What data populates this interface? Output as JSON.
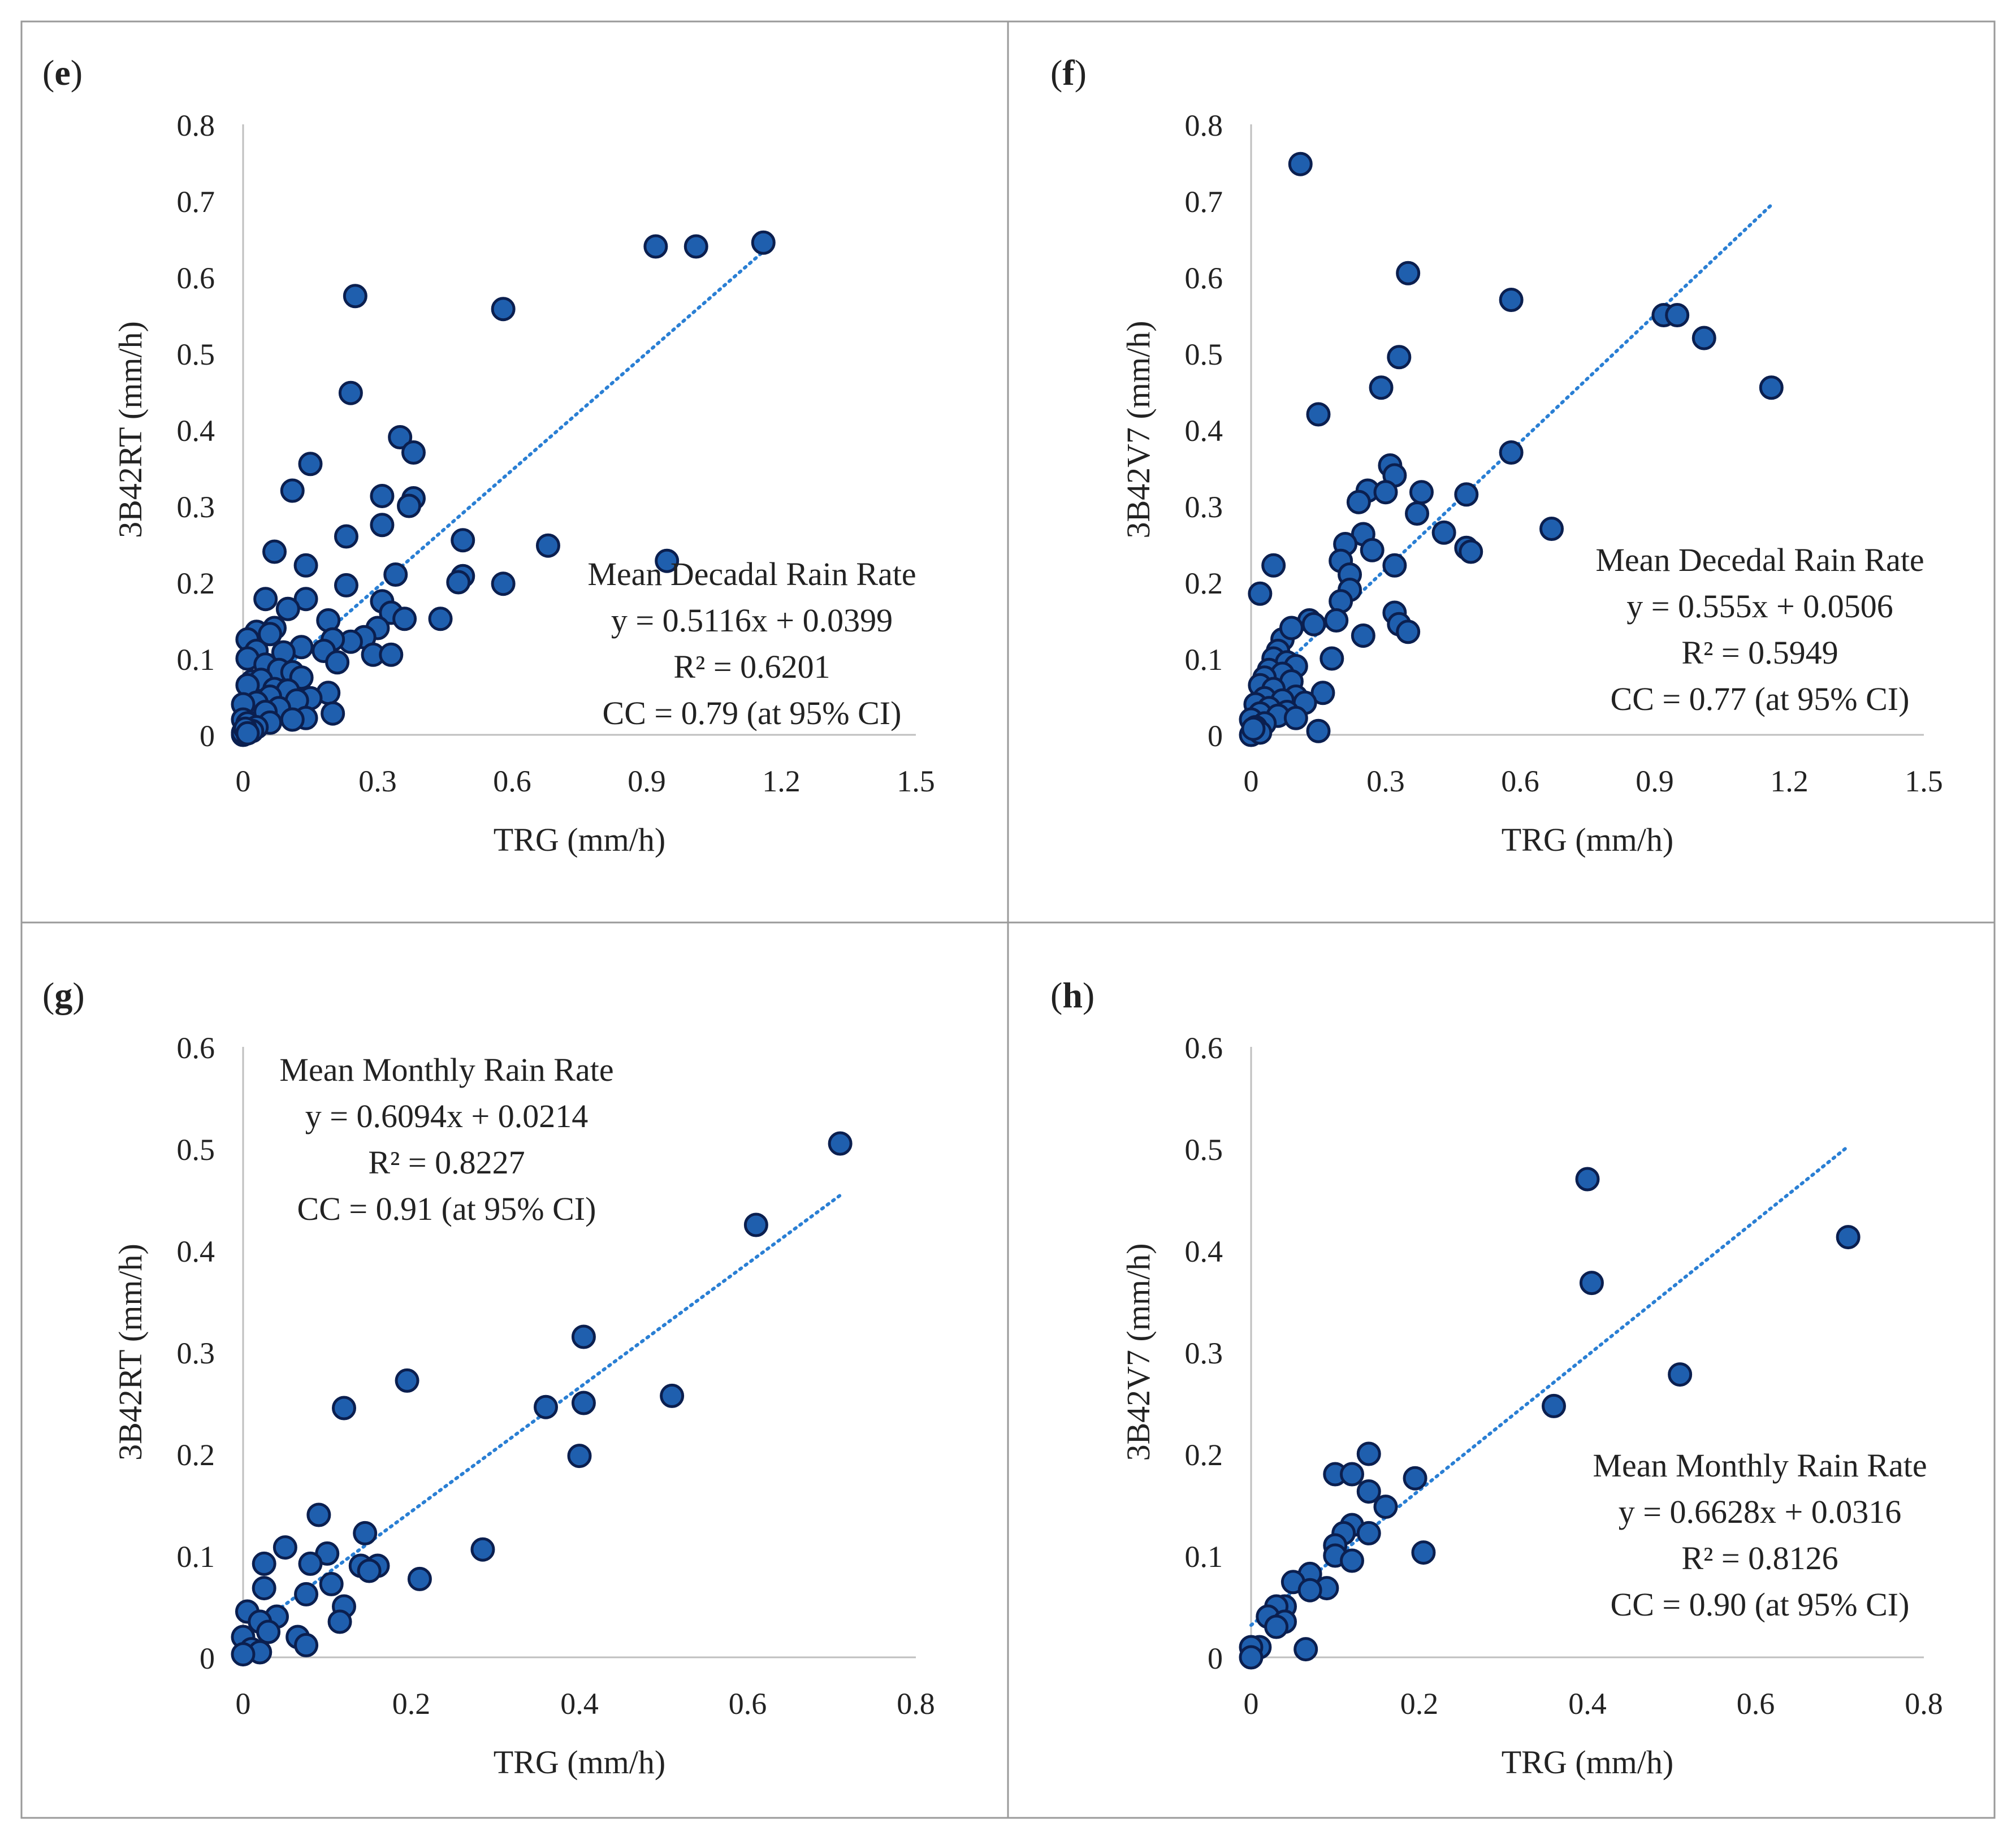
{
  "colors": {
    "marker_fill": "#1f5fae",
    "marker_stroke": "#0b1f4f",
    "trend": "#2a7fd4",
    "axis": "#bfbfbf",
    "border": "#9a9a9a",
    "text": "#222222"
  },
  "chart_data": [
    {
      "type": "scatter",
      "panel_label": "(e)",
      "label_letter": "e",
      "xlabel": "TRG (mm/h)",
      "ylabel": "3B42RT (mm/h)",
      "xlim": [
        0,
        1.5
      ],
      "ylim": [
        0,
        0.8
      ],
      "xticks": [
        "0",
        "0.3",
        "0.6",
        "0.9",
        "1.2",
        "1.5"
      ],
      "yticks": [
        "0",
        "0.1",
        "0.2",
        "0.3",
        "0.4",
        "0.5",
        "0.6",
        "0.7",
        "0.8"
      ],
      "trendline": {
        "slope": 0.5116,
        "intercept": 0.0399,
        "x_range": [
          0,
          1.16
        ]
      },
      "annotation": [
        "Mean Decadal Rain Rate",
        "y = 0.5116x + 0.0399",
        "R² = 0.6201",
        "CC = 0.79 (at 95% CI)"
      ],
      "annotation_anchor": "lower-right",
      "points": [
        [
          1.16,
          0.645
        ],
        [
          1.01,
          0.64
        ],
        [
          0.92,
          0.64
        ],
        [
          0.945,
          0.228
        ],
        [
          0.25,
          0.575
        ],
        [
          0.58,
          0.558
        ],
        [
          0.24,
          0.448
        ],
        [
          0.35,
          0.39
        ],
        [
          0.38,
          0.37
        ],
        [
          0.15,
          0.355
        ],
        [
          0.11,
          0.32
        ],
        [
          0.31,
          0.313
        ],
        [
          0.38,
          0.31
        ],
        [
          0.37,
          0.3
        ],
        [
          0.31,
          0.275
        ],
        [
          0.23,
          0.26
        ],
        [
          0.49,
          0.255
        ],
        [
          0.68,
          0.248
        ],
        [
          0.07,
          0.24
        ],
        [
          0.14,
          0.222
        ],
        [
          0.34,
          0.21
        ],
        [
          0.49,
          0.208
        ],
        [
          0.48,
          0.2
        ],
        [
          0.58,
          0.198
        ],
        [
          0.23,
          0.196
        ],
        [
          0.05,
          0.178
        ],
        [
          0.14,
          0.178
        ],
        [
          0.31,
          0.175
        ],
        [
          0.33,
          0.16
        ],
        [
          0.1,
          0.165
        ],
        [
          0.44,
          0.152
        ],
        [
          0.36,
          0.152
        ],
        [
          0.19,
          0.15
        ],
        [
          0.3,
          0.14
        ],
        [
          0.07,
          0.14
        ],
        [
          0.03,
          0.135
        ],
        [
          0.06,
          0.132
        ],
        [
          0.27,
          0.128
        ],
        [
          0.24,
          0.122
        ],
        [
          0.2,
          0.125
        ],
        [
          0.01,
          0.125
        ],
        [
          0.03,
          0.11
        ],
        [
          0.13,
          0.115
        ],
        [
          0.09,
          0.108
        ],
        [
          0.18,
          0.11
        ],
        [
          0.29,
          0.105
        ],
        [
          0.33,
          0.105
        ],
        [
          0.01,
          0.1
        ],
        [
          0.21,
          0.095
        ],
        [
          0.05,
          0.092
        ],
        [
          0.08,
          0.085
        ],
        [
          0.11,
          0.082
        ],
        [
          0.13,
          0.075
        ],
        [
          0.02,
          0.07
        ],
        [
          0.04,
          0.072
        ],
        [
          0.01,
          0.065
        ],
        [
          0.07,
          0.06
        ],
        [
          0.1,
          0.058
        ],
        [
          0.19,
          0.055
        ],
        [
          0.15,
          0.048
        ],
        [
          0.06,
          0.05
        ],
        [
          0.12,
          0.045
        ],
        [
          0.03,
          0.042
        ],
        [
          0.0,
          0.04
        ],
        [
          0.08,
          0.035
        ],
        [
          0.05,
          0.03
        ],
        [
          0.2,
          0.028
        ],
        [
          0.14,
          0.022
        ],
        [
          0.11,
          0.02
        ],
        [
          0.0,
          0.02
        ],
        [
          0.06,
          0.016
        ],
        [
          0.01,
          0.015
        ],
        [
          0.03,
          0.01
        ],
        [
          0.02,
          0.005
        ],
        [
          0.0,
          0.0
        ],
        [
          0.0,
          0.003
        ],
        [
          0.005,
          0.008
        ],
        [
          0.01,
          0.002
        ]
      ]
    },
    {
      "type": "scatter",
      "panel_label": "(f)",
      "label_letter": "f",
      "xlabel": "TRG (mm/h)",
      "ylabel": "3B42V7 (mm/h)",
      "xlim": [
        0,
        1.5
      ],
      "ylim": [
        0,
        0.8
      ],
      "xticks": [
        "0",
        "0.3",
        "0.6",
        "0.9",
        "1.2",
        "1.5"
      ],
      "yticks": [
        "0",
        "0.1",
        "0.2",
        "0.3",
        "0.4",
        "0.5",
        "0.6",
        "0.7",
        "0.8"
      ],
      "trendline": {
        "slope": 0.555,
        "intercept": 0.0506,
        "x_range": [
          0,
          1.16
        ]
      },
      "annotation": [
        "Mean Decedal Rain Rate",
        "y = 0.555x + 0.0506",
        "R² = 0.5949",
        "CC = 0.77 (at 95% CI)"
      ],
      "annotation_anchor": "lower-right",
      "points": [
        [
          0.11,
          0.748
        ],
        [
          0.35,
          0.605
        ],
        [
          0.58,
          0.57
        ],
        [
          0.92,
          0.55
        ],
        [
          0.95,
          0.55
        ],
        [
          1.01,
          0.52
        ],
        [
          1.16,
          0.455
        ],
        [
          0.33,
          0.495
        ],
        [
          0.29,
          0.455
        ],
        [
          0.15,
          0.42
        ],
        [
          0.58,
          0.37
        ],
        [
          0.31,
          0.353
        ],
        [
          0.32,
          0.34
        ],
        [
          0.26,
          0.32
        ],
        [
          0.3,
          0.318
        ],
        [
          0.38,
          0.318
        ],
        [
          0.48,
          0.315
        ],
        [
          0.24,
          0.305
        ],
        [
          0.37,
          0.29
        ],
        [
          0.67,
          0.27
        ],
        [
          0.43,
          0.265
        ],
        [
          0.25,
          0.263
        ],
        [
          0.21,
          0.25
        ],
        [
          0.48,
          0.245
        ],
        [
          0.49,
          0.24
        ],
        [
          0.27,
          0.242
        ],
        [
          0.2,
          0.228
        ],
        [
          0.32,
          0.222
        ],
        [
          0.05,
          0.222
        ],
        [
          0.22,
          0.21
        ],
        [
          0.22,
          0.19
        ],
        [
          0.02,
          0.185
        ],
        [
          0.2,
          0.175
        ],
        [
          0.32,
          0.16
        ],
        [
          0.33,
          0.145
        ],
        [
          0.19,
          0.15
        ],
        [
          0.13,
          0.15
        ],
        [
          0.14,
          0.145
        ],
        [
          0.35,
          0.135
        ],
        [
          0.25,
          0.13
        ],
        [
          0.07,
          0.125
        ],
        [
          0.09,
          0.14
        ],
        [
          0.06,
          0.11
        ],
        [
          0.05,
          0.1
        ],
        [
          0.18,
          0.1
        ],
        [
          0.08,
          0.095
        ],
        [
          0.1,
          0.09
        ],
        [
          0.04,
          0.085
        ],
        [
          0.07,
          0.08
        ],
        [
          0.03,
          0.075
        ],
        [
          0.09,
          0.07
        ],
        [
          0.02,
          0.065
        ],
        [
          0.05,
          0.06
        ],
        [
          0.16,
          0.055
        ],
        [
          0.1,
          0.05
        ],
        [
          0.03,
          0.048
        ],
        [
          0.07,
          0.045
        ],
        [
          0.12,
          0.042
        ],
        [
          0.01,
          0.04
        ],
        [
          0.04,
          0.035
        ],
        [
          0.08,
          0.03
        ],
        [
          0.02,
          0.028
        ],
        [
          0.06,
          0.025
        ],
        [
          0.1,
          0.022
        ],
        [
          0.0,
          0.02
        ],
        [
          0.03,
          0.015
        ],
        [
          0.01,
          0.01
        ],
        [
          0.15,
          0.005
        ],
        [
          0.0,
          0.0
        ],
        [
          0.02,
          0.003
        ],
        [
          0.005,
          0.008
        ]
      ]
    },
    {
      "type": "scatter",
      "panel_label": "(g)",
      "label_letter": "g",
      "xlabel": "TRG (mm/h)",
      "ylabel": "3B42RT (mm/h)",
      "xlim": [
        0,
        0.8
      ],
      "ylim": [
        0,
        0.6
      ],
      "xticks": [
        "0",
        "0.2",
        "0.4",
        "0.6",
        "0.8"
      ],
      "yticks": [
        "0",
        "0.1",
        "0.2",
        "0.3",
        "0.4",
        "0.5",
        "0.6"
      ],
      "trendline": {
        "slope": 0.6094,
        "intercept": 0.0214,
        "x_range": [
          0,
          0.71
        ]
      },
      "annotation": [
        "Mean Monthly Rain Rate",
        "y = 0.6094x + 0.0214",
        "R² = 0.8227",
        "CC = 0.91 (at 95% CI)"
      ],
      "annotation_anchor": "upper-left",
      "points": [
        [
          0.71,
          0.505
        ],
        [
          0.61,
          0.425
        ],
        [
          0.405,
          0.315
        ],
        [
          0.195,
          0.272
        ],
        [
          0.12,
          0.245
        ],
        [
          0.51,
          0.257
        ],
        [
          0.36,
          0.246
        ],
        [
          0.405,
          0.25
        ],
        [
          0.4,
          0.198
        ],
        [
          0.09,
          0.14
        ],
        [
          0.145,
          0.122
        ],
        [
          0.285,
          0.106
        ],
        [
          0.05,
          0.108
        ],
        [
          0.1,
          0.102
        ],
        [
          0.025,
          0.092
        ],
        [
          0.08,
          0.092
        ],
        [
          0.14,
          0.09
        ],
        [
          0.16,
          0.09
        ],
        [
          0.15,
          0.085
        ],
        [
          0.21,
          0.077
        ],
        [
          0.105,
          0.072
        ],
        [
          0.025,
          0.068
        ],
        [
          0.075,
          0.062
        ],
        [
          0.12,
          0.05
        ],
        [
          0.005,
          0.045
        ],
        [
          0.04,
          0.04
        ],
        [
          0.02,
          0.035
        ],
        [
          0.115,
          0.035
        ],
        [
          0.03,
          0.025
        ],
        [
          0.065,
          0.02
        ],
        [
          0.0,
          0.02
        ],
        [
          0.075,
          0.012
        ],
        [
          0.01,
          0.008
        ],
        [
          0.02,
          0.005
        ],
        [
          0.0,
          0.003
        ]
      ]
    },
    {
      "type": "scatter",
      "panel_label": "(h)",
      "label_letter": "h",
      "xlabel": "TRG (mm/h)",
      "ylabel": "3B42V7 (mm/h)",
      "xlim": [
        0,
        0.8
      ],
      "ylim": [
        0,
        0.6
      ],
      "xticks": [
        "0",
        "0.2",
        "0.4",
        "0.6",
        "0.8"
      ],
      "yticks": [
        "0",
        "0.1",
        "0.2",
        "0.3",
        "0.4",
        "0.5",
        "0.6"
      ],
      "trendline": {
        "slope": 0.6628,
        "intercept": 0.0316,
        "x_range": [
          0,
          0.71
        ]
      },
      "annotation": [
        "Mean Monthly Rain Rate",
        "y = 0.6628x + 0.0316",
        "R² = 0.8126",
        "CC = 0.90 (at 95% CI)"
      ],
      "annotation_anchor": "lower-right",
      "points": [
        [
          0.4,
          0.47
        ],
        [
          0.71,
          0.413
        ],
        [
          0.405,
          0.368
        ],
        [
          0.51,
          0.278
        ],
        [
          0.36,
          0.247
        ],
        [
          0.14,
          0.2
        ],
        [
          0.1,
          0.18
        ],
        [
          0.12,
          0.18
        ],
        [
          0.195,
          0.176
        ],
        [
          0.14,
          0.163
        ],
        [
          0.16,
          0.148
        ],
        [
          0.12,
          0.13
        ],
        [
          0.11,
          0.122
        ],
        [
          0.14,
          0.122
        ],
        [
          0.1,
          0.11
        ],
        [
          0.1,
          0.1
        ],
        [
          0.205,
          0.103
        ],
        [
          0.12,
          0.095
        ],
        [
          0.07,
          0.082
        ],
        [
          0.05,
          0.074
        ],
        [
          0.09,
          0.068
        ],
        [
          0.07,
          0.066
        ],
        [
          0.04,
          0.05
        ],
        [
          0.03,
          0.05
        ],
        [
          0.02,
          0.04
        ],
        [
          0.04,
          0.035
        ],
        [
          0.03,
          0.03
        ],
        [
          0.01,
          0.01
        ],
        [
          0.065,
          0.008
        ],
        [
          0.0,
          0.01
        ],
        [
          0.0,
          0.0
        ]
      ]
    }
  ]
}
